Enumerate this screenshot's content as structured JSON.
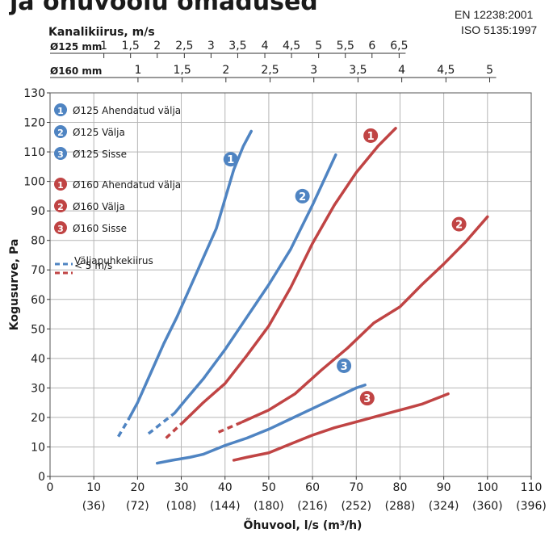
{
  "heading": "ja õhuvoolu omadused",
  "standards": [
    "EN 12238:2001",
    "ISO 5135:1997"
  ],
  "colors": {
    "blue": "#4f84c2",
    "red": "#c04444",
    "grid": "#b5b5b5",
    "text": "#1a1a1a"
  },
  "chart_data": {
    "type": "line",
    "xlabel": "Õhuvool, l/s (m³/h)",
    "ylabel": "Kogusurve, Pa",
    "xlim": [
      0,
      110
    ],
    "ylim": [
      0,
      130
    ],
    "x_ticks": [
      0,
      10,
      20,
      30,
      40,
      50,
      60,
      70,
      80,
      90,
      100,
      110
    ],
    "x_tick_labels": [
      "0",
      "10",
      "20",
      "30",
      "40",
      "50",
      "60",
      "70",
      "80",
      "90",
      "100",
      "110"
    ],
    "x_tick_sublabels": [
      "",
      "(36)",
      "(72)",
      "(108)",
      "(144)",
      "(180)",
      "(216)",
      "(252)",
      "(288)",
      "(324)",
      "(360)",
      "(396)"
    ],
    "y_ticks": [
      0,
      10,
      20,
      30,
      40,
      50,
      60,
      70,
      80,
      90,
      100,
      110,
      120,
      130
    ],
    "grid": true,
    "top_axis_title": "Kanalikiirus, m/s",
    "velocity_axes": [
      {
        "label": "Ø125 mm",
        "ticks": [
          {
            "label": "1",
            "x": 12.3
          },
          {
            "label": "1,5",
            "x": 18.4
          },
          {
            "label": "2",
            "x": 24.5
          },
          {
            "label": "2,5",
            "x": 30.7
          },
          {
            "label": "3",
            "x": 36.8
          },
          {
            "label": "3,5",
            "x": 42.9
          },
          {
            "label": "4",
            "x": 49.1
          },
          {
            "label": "4,5",
            "x": 55.2
          },
          {
            "label": "5",
            "x": 61.4
          },
          {
            "label": "5,5",
            "x": 67.5
          },
          {
            "label": "6",
            "x": 73.6
          },
          {
            "label": "6,5",
            "x": 79.8
          }
        ]
      },
      {
        "label": "Ø160 mm",
        "ticks": [
          {
            "label": "1",
            "x": 20.1
          },
          {
            "label": "1,5",
            "x": 30.2
          },
          {
            "label": "2",
            "x": 40.2
          },
          {
            "label": "2,5",
            "x": 50.3
          },
          {
            "label": "3",
            "x": 60.3
          },
          {
            "label": "3,5",
            "x": 70.4
          },
          {
            "label": "4",
            "x": 80.4
          },
          {
            "label": "4,5",
            "x": 90.5
          },
          {
            "label": "5",
            "x": 100.5
          }
        ]
      }
    ],
    "legend_position": "top-left",
    "legend": [
      {
        "num": "1",
        "color": "blue",
        "label": "Ø125 Ahendatud välja"
      },
      {
        "num": "2",
        "color": "blue",
        "label": "Ø125 Välja"
      },
      {
        "num": "3",
        "color": "blue",
        "label": "Ø125 Sisse"
      },
      {
        "num": "1",
        "color": "red",
        "label": "Ø160 Ahendatud välja"
      },
      {
        "num": "2",
        "color": "red",
        "label": "Ø160 Välja"
      },
      {
        "num": "3",
        "color": "red",
        "label": "Ø160 Sisse"
      },
      {
        "dash": true,
        "label": "Väljapuhkekiirus"
      },
      {
        "dash": true,
        "label": "< 5 m/s"
      }
    ],
    "series": [
      {
        "name": "Ø125 Ahendatud välja",
        "color": "blue",
        "marker": "1",
        "marker_at": {
          "x": 41.3,
          "y": 107.5
        },
        "dashed": [
          [
            15.6,
            13.5
          ],
          [
            18.0,
            19.5
          ]
        ],
        "values": [
          [
            18.0,
            19.5
          ],
          [
            20,
            25
          ],
          [
            23,
            35
          ],
          [
            26,
            45
          ],
          [
            29,
            54
          ],
          [
            32,
            64
          ],
          [
            35,
            74
          ],
          [
            38,
            84
          ],
          [
            40,
            94
          ],
          [
            42,
            104
          ],
          [
            44.2,
            112
          ],
          [
            46,
            117
          ]
        ]
      },
      {
        "name": "Ø125 Välja",
        "color": "blue",
        "marker": "2",
        "marker_at": {
          "x": 57.7,
          "y": 95
        },
        "dashed": [
          [
            22.5,
            14.5
          ],
          [
            28.5,
            21.5
          ]
        ],
        "values": [
          [
            28.5,
            21.5
          ],
          [
            31,
            26
          ],
          [
            35,
            33
          ],
          [
            40,
            43
          ],
          [
            45,
            54
          ],
          [
            50,
            65
          ],
          [
            55,
            77
          ],
          [
            60,
            92
          ],
          [
            65.3,
            109
          ]
        ]
      },
      {
        "name": "Ø125 Sisse",
        "color": "blue",
        "marker": "3",
        "marker_at": {
          "x": 67.2,
          "y": 37.5
        },
        "values": [
          [
            24.5,
            4.5
          ],
          [
            28,
            5.5
          ],
          [
            32,
            6.5
          ],
          [
            35,
            7.5
          ],
          [
            40,
            10.5
          ],
          [
            45,
            13
          ],
          [
            50,
            16
          ],
          [
            55,
            19.5
          ],
          [
            60,
            23
          ],
          [
            65,
            26.5
          ],
          [
            70,
            30
          ],
          [
            72,
            31
          ]
        ]
      },
      {
        "name": "Ø160 Ahendatud välja",
        "color": "red",
        "marker": "1",
        "marker_at": {
          "x": 73.3,
          "y": 115.5
        },
        "dashed": [
          [
            26.5,
            13
          ],
          [
            30.5,
            18.5
          ]
        ],
        "values": [
          [
            30.5,
            18.5
          ],
          [
            35,
            25
          ],
          [
            40,
            31.5
          ],
          [
            45,
            41
          ],
          [
            50,
            51
          ],
          [
            55,
            64
          ],
          [
            60,
            79
          ],
          [
            65,
            92
          ],
          [
            70,
            103
          ],
          [
            75,
            112
          ],
          [
            79,
            118
          ]
        ]
      },
      {
        "name": "Ø160 Välja",
        "color": "red",
        "marker": "2",
        "marker_at": {
          "x": 93.5,
          "y": 85.5
        },
        "dashed": [
          [
            38.5,
            15
          ],
          [
            44,
            18.5
          ]
        ],
        "values": [
          [
            44,
            18.5
          ],
          [
            50,
            22.5
          ],
          [
            56,
            28
          ],
          [
            62,
            36
          ],
          [
            68,
            43.5
          ],
          [
            74,
            52
          ],
          [
            80,
            57.5
          ],
          [
            85,
            65
          ],
          [
            90,
            72
          ],
          [
            95,
            79.5
          ],
          [
            100,
            88
          ]
        ]
      },
      {
        "name": "Ø160 Sisse",
        "color": "red",
        "marker": "3",
        "marker_at": {
          "x": 72.5,
          "y": 26.5
        },
        "values": [
          [
            42,
            5.5
          ],
          [
            45,
            6.5
          ],
          [
            50,
            8
          ],
          [
            55,
            11
          ],
          [
            60,
            14
          ],
          [
            65,
            16.5
          ],
          [
            70,
            18.5
          ],
          [
            75,
            20.5
          ],
          [
            80,
            22.5
          ],
          [
            85,
            24.5
          ],
          [
            91,
            28
          ]
        ]
      }
    ]
  }
}
